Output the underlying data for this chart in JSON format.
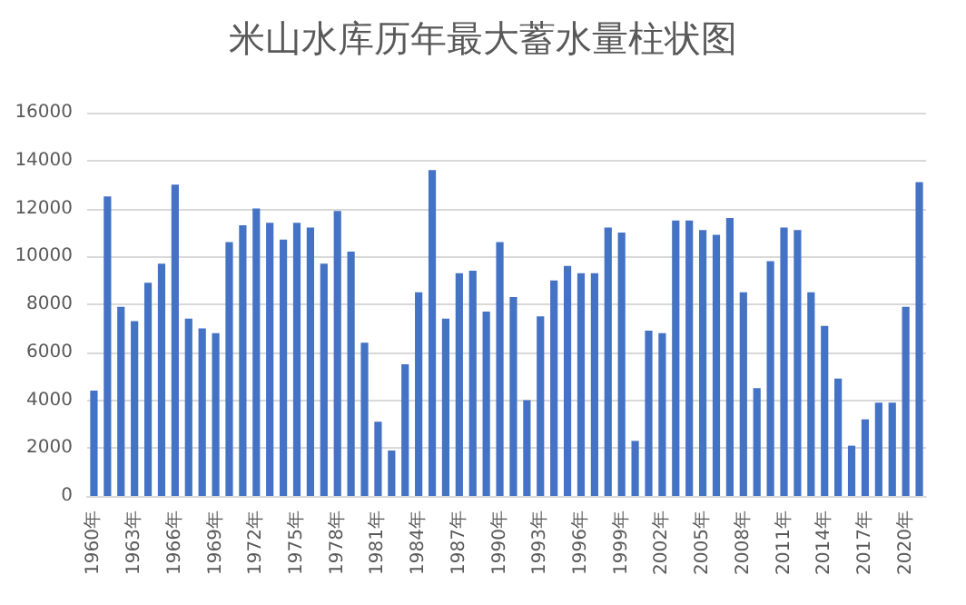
{
  "chart_data": {
    "type": "bar",
    "title": "米山水库历年最大蓄水量柱状图",
    "categories": [
      "1960年",
      null,
      null,
      "1963年",
      null,
      null,
      "1966年",
      null,
      null,
      "1969年",
      null,
      null,
      "1972年",
      null,
      null,
      "1975年",
      null,
      null,
      "1978年",
      null,
      null,
      "1981年",
      null,
      null,
      "1984年",
      null,
      null,
      "1987年",
      null,
      null,
      "1990年",
      null,
      null,
      "1993年",
      null,
      null,
      "1996年",
      null,
      null,
      "1999年",
      null,
      null,
      "2002年",
      null,
      null,
      "2005年",
      null,
      null,
      "2008年",
      null,
      null,
      "2011年",
      null,
      null,
      "2014年",
      null,
      null,
      "2017年",
      null,
      null,
      "2020年",
      null
    ],
    "values": [
      4400,
      12500,
      7900,
      7300,
      8900,
      9700,
      13000,
      7400,
      7000,
      6800,
      10600,
      11300,
      12000,
      11400,
      10700,
      11400,
      11200,
      9700,
      11900,
      10200,
      6400,
      3100,
      1900,
      5500,
      8500,
      13600,
      7400,
      9300,
      9400,
      7700,
      10600,
      8300,
      4000,
      7500,
      9000,
      9600,
      9300,
      9300,
      11200,
      11000,
      2300,
      6900,
      6800,
      11500,
      11500,
      11100,
      10900,
      11600,
      8500,
      4500,
      9800,
      11200,
      11100,
      8500,
      7100,
      4900,
      2100,
      3200,
      3900,
      3900,
      7900,
      13100
    ],
    "color": "#4472c4",
    "ylim": [
      0,
      16000
    ],
    "yticks": [
      0,
      2000,
      4000,
      6000,
      8000,
      10000,
      12000,
      14000,
      16000
    ],
    "grid": "y"
  }
}
